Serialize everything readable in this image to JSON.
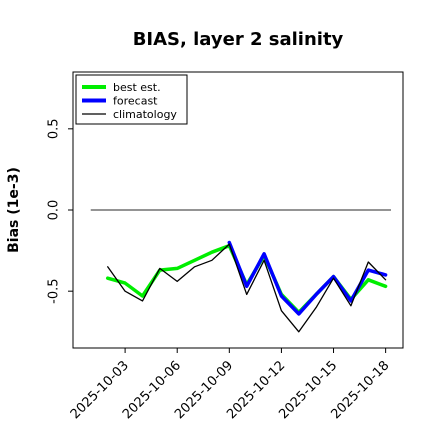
{
  "chart_data": {
    "type": "line",
    "title": "BIAS, layer 2 salinity",
    "xlabel": "",
    "ylabel": "Bias (1e-3)",
    "x_dates": [
      "2025-10-02",
      "2025-10-03",
      "2025-10-04",
      "2025-10-05",
      "2025-10-06",
      "2025-10-07",
      "2025-10-08",
      "2025-10-09",
      "2025-10-10",
      "2025-10-11",
      "2025-10-12",
      "2025-10-13",
      "2025-10-14",
      "2025-10-15",
      "2025-10-16",
      "2025-10-17",
      "2025-10-18"
    ],
    "x_tick_labels": [
      "2025-10-03",
      "2025-10-06",
      "2025-10-09",
      "2025-10-12",
      "2025-10-15",
      "2025-10-18"
    ],
    "highlight_tick": "2025-10-09",
    "highlight_color": "#228B22",
    "xlim": [
      "2025-09-30",
      "2025-10-19"
    ],
    "ylim": [
      -0.85,
      0.85
    ],
    "yticks": [
      -0.5,
      0.0,
      0.5
    ],
    "ytick_labels": [
      "-0.5",
      "0.0",
      "0.5"
    ],
    "reference_line": 0.0,
    "legend_position": "upper left",
    "series": [
      {
        "name": "best est.",
        "color": "#00ee00",
        "width": 3.5,
        "values": [
          -0.42,
          -0.45,
          -0.53,
          -0.37,
          -0.36,
          -0.31,
          -0.26,
          -0.22,
          -0.46,
          -0.28,
          -0.52,
          -0.63,
          -0.52,
          -0.41,
          -0.55,
          -0.43,
          -0.47
        ]
      },
      {
        "name": "forecast",
        "color": "#0000ff",
        "width": 3.5,
        "values": [
          null,
          null,
          null,
          null,
          null,
          null,
          null,
          -0.2,
          -0.47,
          -0.27,
          -0.53,
          -0.64,
          -0.52,
          -0.41,
          -0.56,
          -0.37,
          -0.4
        ]
      },
      {
        "name": "climatology",
        "color": "#000000",
        "width": 1.3,
        "values": [
          -0.35,
          -0.5,
          -0.56,
          -0.36,
          -0.44,
          -0.35,
          -0.31,
          -0.21,
          -0.52,
          -0.31,
          -0.62,
          -0.75,
          -0.6,
          -0.42,
          -0.59,
          -0.32,
          -0.43
        ]
      }
    ]
  }
}
